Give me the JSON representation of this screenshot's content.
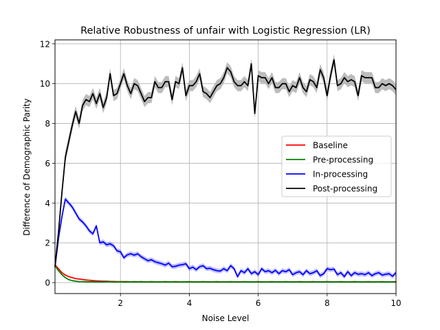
{
  "chart_data": {
    "type": "line",
    "title": "Relative Robustness of unfair with Logistic Regression (LR)",
    "xlabel": "Noise Level",
    "ylabel": "Difference of Demographic Parity",
    "xlim": [
      0.1,
      10
    ],
    "ylim": [
      -0.55,
      12.2
    ],
    "xticks": [
      2,
      4,
      6,
      8,
      10
    ],
    "xtick_labels": [
      "2",
      "4",
      "6",
      "8",
      "10"
    ],
    "yticks": [
      0,
      2,
      4,
      6,
      8,
      10,
      12
    ],
    "ytick_labels": [
      "0",
      "2",
      "4",
      "6",
      "8",
      "10",
      "12"
    ],
    "grid": true,
    "legend_position": "center-right",
    "x": [
      0.1,
      0.2,
      0.3,
      0.4,
      0.5,
      0.6,
      0.7,
      0.8,
      0.9,
      1.0,
      1.1,
      1.2,
      1.3,
      1.4,
      1.5,
      1.6,
      1.7,
      1.8,
      1.9,
      2.0,
      2.1,
      2.2,
      2.3,
      2.4,
      2.5,
      2.6,
      2.7,
      2.8,
      2.9,
      3.0,
      3.1,
      3.2,
      3.3,
      3.4,
      3.5,
      3.6,
      3.7,
      3.8,
      3.9,
      4.0,
      4.1,
      4.2,
      4.3,
      4.4,
      4.5,
      4.6,
      4.7,
      4.8,
      4.9,
      5.0,
      5.1,
      5.2,
      5.3,
      5.4,
      5.5,
      5.6,
      5.7,
      5.8,
      5.9,
      6.0,
      6.1,
      6.2,
      6.3,
      6.4,
      6.5,
      6.6,
      6.7,
      6.8,
      6.9,
      7.0,
      7.1,
      7.2,
      7.3,
      7.4,
      7.5,
      7.6,
      7.7,
      7.8,
      7.9,
      8.0,
      8.1,
      8.2,
      8.3,
      8.4,
      8.5,
      8.6,
      8.7,
      8.8,
      8.9,
      9.0,
      9.1,
      9.2,
      9.3,
      9.4,
      9.5,
      9.6,
      9.7,
      9.8,
      9.9,
      10.0
    ],
    "series": [
      {
        "name": "Baseline",
        "color": "#ff0000",
        "values": [
          0.9,
          0.7,
          0.5,
          0.38,
          0.3,
          0.25,
          0.2,
          0.18,
          0.16,
          0.13,
          0.12,
          0.1,
          0.09,
          0.08,
          0.07,
          0.07,
          0.06,
          0.06,
          0.05,
          0.05,
          0.05,
          0.05,
          0.04,
          0.05,
          0.04,
          0.05,
          0.04,
          0.04,
          0.05,
          0.04,
          0.04,
          0.04,
          0.05,
          0.04,
          0.04,
          0.05,
          0.04,
          0.04,
          0.04,
          0.05,
          0.04,
          0.04,
          0.04,
          0.05,
          0.04,
          0.04,
          0.04,
          0.05,
          0.04,
          0.04,
          0.04,
          0.05,
          0.04,
          0.04,
          0.04,
          0.05,
          0.04,
          0.04,
          0.04,
          0.05,
          0.04,
          0.04,
          0.04,
          0.05,
          0.04,
          0.04,
          0.04,
          0.05,
          0.04,
          0.04,
          0.04,
          0.05,
          0.04,
          0.04,
          0.04,
          0.05,
          0.04,
          0.04,
          0.04,
          0.05,
          0.04,
          0.04,
          0.04,
          0.05,
          0.04,
          0.04,
          0.04,
          0.05,
          0.04,
          0.04,
          0.04,
          0.05,
          0.04,
          0.04,
          0.04,
          0.05,
          0.04,
          0.04,
          0.04,
          0.05
        ]
      },
      {
        "name": "Pre-processing",
        "color": "#008000",
        "values": [
          0.85,
          0.6,
          0.4,
          0.25,
          0.15,
          0.1,
          0.07,
          0.05,
          0.05,
          0.04,
          0.04,
          0.04,
          0.03,
          0.04,
          0.03,
          0.04,
          0.04,
          0.03,
          0.03,
          0.04,
          0.03,
          0.03,
          0.04,
          0.03,
          0.03,
          0.04,
          0.03,
          0.03,
          0.04,
          0.03,
          0.03,
          0.04,
          0.03,
          0.03,
          0.04,
          0.03,
          0.03,
          0.04,
          0.03,
          0.03,
          0.04,
          0.03,
          0.03,
          0.04,
          0.03,
          0.03,
          0.04,
          0.03,
          0.03,
          0.04,
          0.03,
          0.03,
          0.04,
          0.03,
          0.03,
          0.04,
          0.03,
          0.03,
          0.04,
          0.03,
          0.03,
          0.04,
          0.03,
          0.03,
          0.04,
          0.03,
          0.03,
          0.04,
          0.03,
          0.03,
          0.04,
          0.03,
          0.03,
          0.04,
          0.03,
          0.03,
          0.04,
          0.03,
          0.03,
          0.04,
          0.03,
          0.03,
          0.04,
          0.03,
          0.03,
          0.04,
          0.03,
          0.03,
          0.04,
          0.03,
          0.03,
          0.04,
          0.03,
          0.03,
          0.04,
          0.03,
          0.03,
          0.04,
          0.03,
          0.03
        ]
      },
      {
        "name": "In-processing",
        "color": "#0000ff",
        "band_halfwidth": 0.12,
        "values": [
          0.8,
          2.2,
          3.3,
          4.2,
          4.0,
          3.8,
          3.5,
          3.2,
          3.05,
          2.85,
          2.6,
          2.45,
          2.85,
          2.0,
          2.05,
          1.9,
          1.95,
          1.85,
          1.6,
          1.55,
          1.25,
          1.4,
          1.45,
          1.38,
          1.45,
          1.3,
          1.2,
          1.1,
          1.15,
          1.05,
          1.0,
          0.95,
          0.88,
          0.98,
          0.8,
          0.82,
          0.88,
          0.9,
          0.95,
          0.7,
          0.78,
          0.65,
          0.8,
          0.85,
          0.7,
          0.72,
          0.65,
          0.6,
          0.58,
          0.7,
          0.6,
          0.85,
          0.7,
          0.3,
          0.6,
          0.5,
          0.7,
          0.45,
          0.55,
          0.4,
          0.7,
          0.55,
          0.6,
          0.5,
          0.62,
          0.45,
          0.6,
          0.55,
          0.65,
          0.4,
          0.5,
          0.55,
          0.4,
          0.6,
          0.45,
          0.5,
          0.6,
          0.35,
          0.45,
          0.7,
          0.65,
          0.68,
          0.4,
          0.5,
          0.3,
          0.55,
          0.35,
          0.5,
          0.42,
          0.45,
          0.4,
          0.5,
          0.35,
          0.45,
          0.5,
          0.38,
          0.42,
          0.45,
          0.32,
          0.5
        ]
      },
      {
        "name": "Post-processing",
        "color": "#000000",
        "band_halfwidth": 0.28,
        "band_color": "#b0b0b0",
        "values": [
          0.8,
          2.5,
          4.5,
          6.3,
          7.1,
          7.9,
          8.6,
          8.0,
          8.9,
          9.2,
          9.1,
          9.5,
          9.0,
          9.5,
          8.8,
          9.3,
          10.5,
          9.4,
          9.5,
          10.0,
          10.5,
          9.9,
          9.5,
          10.0,
          9.9,
          9.5,
          9.1,
          9.3,
          9.3,
          10.1,
          9.8,
          9.8,
          10.1,
          10.1,
          9.2,
          10.1,
          10.0,
          10.8,
          9.4,
          9.9,
          9.9,
          10.1,
          10.5,
          9.6,
          9.5,
          9.3,
          9.6,
          9.9,
          10.0,
          10.3,
          10.8,
          10.6,
          10.1,
          9.9,
          9.9,
          10.1,
          9.9,
          11.0,
          8.5,
          10.4,
          10.3,
          10.3,
          10.0,
          10.3,
          9.8,
          9.8,
          10.0,
          10.0,
          9.6,
          9.9,
          9.8,
          10.3,
          9.8,
          9.6,
          10.2,
          10.1,
          9.8,
          10.7,
          10.3,
          9.4,
          10.4,
          11.2,
          9.9,
          10.0,
          10.3,
          10.1,
          10.2,
          10.1,
          9.4,
          10.4,
          10.3,
          10.3,
          10.3,
          9.8,
          9.8,
          10.0,
          9.9,
          10.0,
          9.9,
          9.7
        ]
      }
    ]
  }
}
